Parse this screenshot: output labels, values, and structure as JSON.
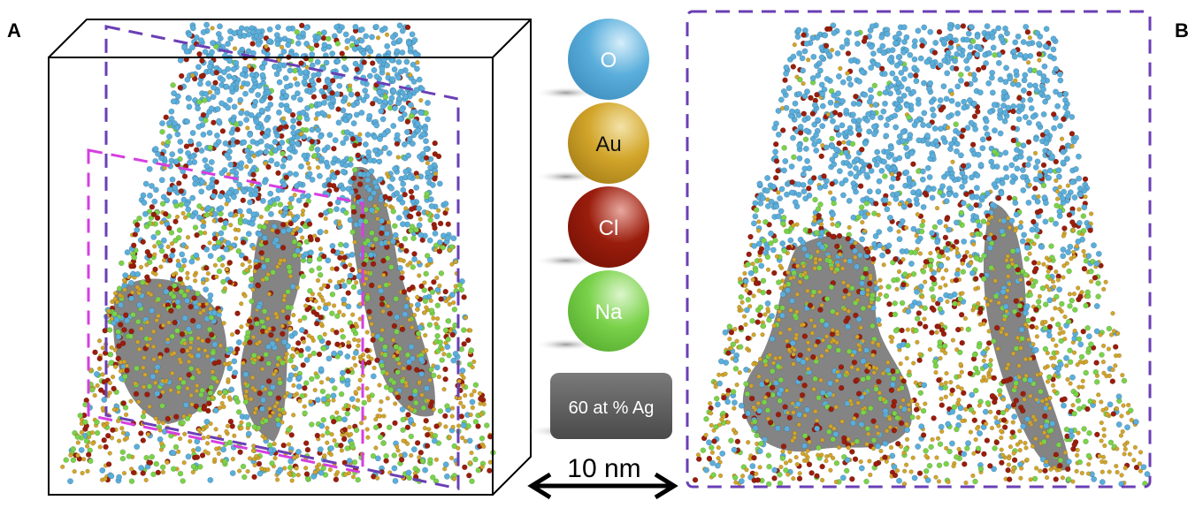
{
  "panels": {
    "a_label": "A",
    "b_label": "B"
  },
  "legend": {
    "elements": [
      {
        "symbol": "O",
        "color": "#5aaedb"
      },
      {
        "symbol": "Au",
        "color": "#d2a52a"
      },
      {
        "symbol": "Cl",
        "color": "#9a1d0c"
      },
      {
        "symbol": "Na",
        "color": "#7ad24a"
      }
    ],
    "isosurface": {
      "label": "60 at % Ag",
      "color": "#6e6e6e"
    }
  },
  "scale_bar": {
    "label": "10 nm"
  },
  "colors": {
    "plane_purple": "#6a3fb5",
    "plane_magenta": "#d63fe0",
    "box": "#000000"
  }
}
